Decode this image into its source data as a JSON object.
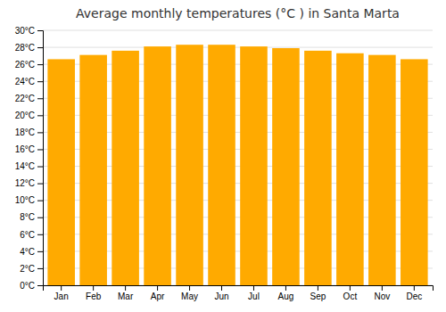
{
  "chart_data": {
    "type": "bar",
    "title": "Average monthly temperatures (°C ) in Santa Marta",
    "categories": [
      "Jan",
      "Feb",
      "Mar",
      "Apr",
      "May",
      "Jun",
      "Jul",
      "Aug",
      "Sep",
      "Oct",
      "Nov",
      "Dec"
    ],
    "values": [
      26.6,
      27.1,
      27.6,
      28.1,
      28.3,
      28.3,
      28.1,
      27.9,
      27.6,
      27.3,
      27.1,
      26.6
    ],
    "color": "#FFAA00",
    "ylim": [
      0,
      30
    ],
    "yticks": [
      {
        "value": 0,
        "label": "0°C"
      },
      {
        "value": 2,
        "label": "2°C"
      },
      {
        "value": 4,
        "label": "4°C"
      },
      {
        "value": 6,
        "label": "6°C"
      },
      {
        "value": 8,
        "label": "8°C"
      },
      {
        "value": 10,
        "label": "10°C"
      },
      {
        "value": 12,
        "label": "12°C"
      },
      {
        "value": 14,
        "label": "14°C"
      },
      {
        "value": 16,
        "label": "16°C"
      },
      {
        "value": 18,
        "label": "18°C"
      },
      {
        "value": 20,
        "label": "20°C"
      },
      {
        "value": 22,
        "label": "22°C"
      },
      {
        "value": 24,
        "label": "24°C"
      },
      {
        "value": 26,
        "label": "26°C"
      },
      {
        "value": 28,
        "label": "28°C"
      },
      {
        "value": 30,
        "label": "30°C"
      }
    ],
    "grid": true
  }
}
